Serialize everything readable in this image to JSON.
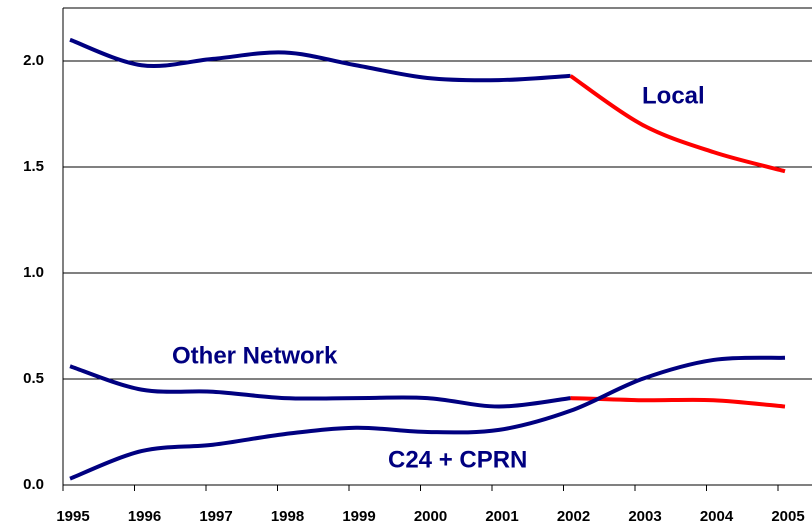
{
  "chart_data": {
    "type": "line",
    "categories": [
      "1995",
      "1996",
      "1997",
      "1998",
      "1999",
      "2000",
      "2001",
      "2002",
      "2003",
      "2004",
      "2005"
    ],
    "series": [
      {
        "name": "Local",
        "color": "#000080",
        "color_change": {
          "from": "2002",
          "color": "#ff0000"
        },
        "values": [
          2.1,
          1.98,
          2.01,
          2.04,
          1.98,
          1.92,
          1.91,
          1.93,
          1.7,
          1.57,
          1.48
        ]
      },
      {
        "name": "Other Network",
        "color": "#000080",
        "color_change": {
          "from": "2002",
          "color": "#ff0000"
        },
        "values": [
          0.56,
          0.45,
          0.44,
          0.41,
          0.41,
          0.41,
          0.37,
          0.41,
          0.4,
          0.4,
          0.37
        ]
      },
      {
        "name": "C24 + CPRN",
        "color": "#000080",
        "values": [
          0.03,
          0.16,
          0.19,
          0.24,
          0.27,
          0.25,
          0.26,
          0.35,
          0.5,
          0.59,
          0.6
        ]
      }
    ],
    "ylim": [
      0,
      2.25
    ],
    "yticks": [
      {
        "value": 0,
        "label": "0.0"
      },
      0.5,
      {
        "value": 1,
        "label": "1.0"
      },
      1.5,
      {
        "value": 2,
        "label": "2.0"
      }
    ],
    "grid": true
  }
}
